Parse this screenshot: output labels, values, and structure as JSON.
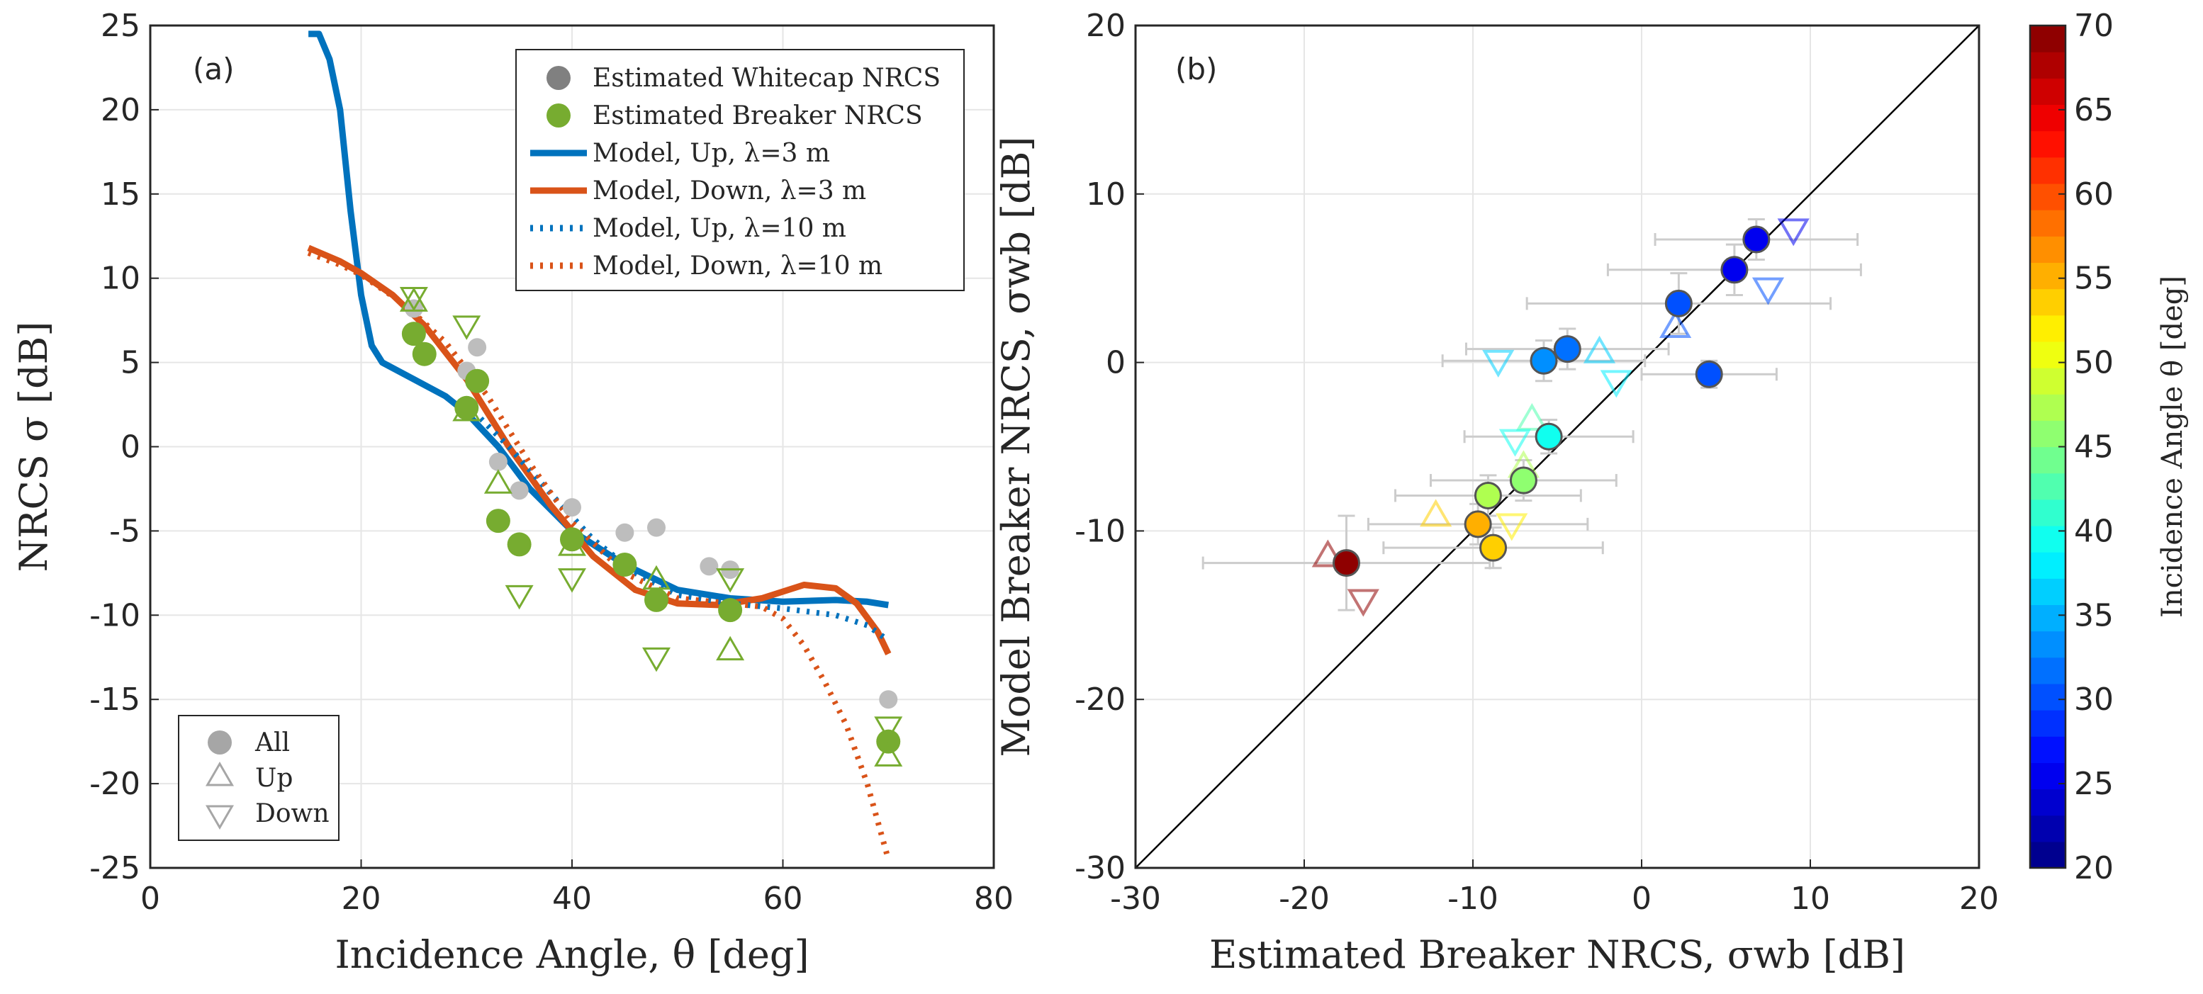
{
  "chart_data": [
    {
      "type": "scatter",
      "panel": "(a)",
      "xlabel": "Incidence Angle, θ [deg]",
      "ylabel": "NRCS σ [dB]",
      "xlim": [
        0,
        80
      ],
      "ylim": [
        -25,
        25
      ],
      "xticks": [
        0,
        20,
        40,
        60,
        80
      ],
      "yticks": [
        25,
        20,
        15,
        10,
        5,
        0,
        -5,
        -10,
        -15,
        -20,
        -25
      ],
      "grid": true,
      "legend_top": {
        "placement": "top-right",
        "entries": [
          {
            "label": "Estimated Whitecap NRCS",
            "style": "gray-dot"
          },
          {
            "label": "Estimated Breaker NRCS",
            "style": "green-dot"
          },
          {
            "label": "Model, Up, λ=3 m",
            "style": "blue-solid"
          },
          {
            "label": "Model, Down, λ=3 m",
            "style": "orange-solid"
          },
          {
            "label": "Model, Up, λ=10 m",
            "style": "blue-dotted"
          },
          {
            "label": "Model, Down, λ=10 m",
            "style": "orange-dotted"
          }
        ]
      },
      "legend_bottom": {
        "placement": "bottom-left",
        "entries": [
          {
            "label": "All",
            "style": "circle"
          },
          {
            "label": "Up",
            "style": "triangle-up"
          },
          {
            "label": "Down",
            "style": "triangle-down"
          }
        ]
      },
      "colors": {
        "blue": "#0072bd",
        "orange": "#d95319",
        "green": "#77ac30",
        "gray": "#bdbdbd"
      },
      "series": [
        {
          "name": "Model, Up, λ=3 m",
          "kind": "line",
          "style": "solid",
          "color": "#0072bd",
          "x": [
            15,
            16,
            17,
            18,
            19,
            20,
            21,
            22,
            25,
            28,
            30,
            33,
            36,
            40,
            45,
            50,
            55,
            60,
            65,
            68,
            70
          ],
          "y": [
            24.5,
            24.5,
            23,
            20,
            14,
            9,
            6,
            5,
            4,
            3,
            2,
            0,
            -2.5,
            -5,
            -7,
            -8.5,
            -9,
            -9.2,
            -9.1,
            -9.2,
            -9.4
          ]
        },
        {
          "name": "Model, Down, λ=3 m",
          "kind": "line",
          "style": "solid",
          "color": "#d95319",
          "x": [
            15,
            18,
            20,
            23,
            26,
            30,
            34,
            38,
            42,
            46,
            50,
            54,
            58,
            62,
            65,
            67,
            69,
            70
          ],
          "y": [
            11.8,
            11,
            10.3,
            9,
            7.2,
            4,
            0,
            -3.5,
            -6.5,
            -8.5,
            -9.3,
            -9.4,
            -9.0,
            -8.2,
            -8.4,
            -9.3,
            -11,
            -12.3
          ]
        },
        {
          "name": "Model, Up, λ=10 m",
          "kind": "line",
          "style": "dotted",
          "color": "#0072bd",
          "x": [
            30,
            34,
            38,
            42,
            46,
            50,
            55,
            60,
            65,
            68,
            70
          ],
          "y": [
            2.5,
            0,
            -2.8,
            -5.5,
            -7.5,
            -8.8,
            -9.3,
            -9.6,
            -10,
            -10.6,
            -11.5
          ]
        },
        {
          "name": "Model, Down, λ=10 m",
          "kind": "line",
          "style": "dotted",
          "color": "#d95319",
          "x": [
            15,
            18,
            20,
            24,
            28,
            32,
            36,
            40,
            45,
            50,
            55,
            58,
            60,
            62,
            64,
            66,
            68,
            70
          ],
          "y": [
            11.5,
            10.8,
            10.2,
            8.5,
            6.2,
            3,
            -1,
            -4.5,
            -7.5,
            -9,
            -9.3,
            -9.5,
            -10.2,
            -11.8,
            -14,
            -16.5,
            -20,
            -24.5
          ]
        },
        {
          "name": "Estimated Whitecap NRCS",
          "kind": "points",
          "marker": "circle",
          "color": "#bdbdbd",
          "x": [
            25,
            30,
            31,
            33,
            35,
            40,
            45,
            48,
            53,
            55,
            70
          ],
          "y": [
            8.2,
            4.5,
            5.9,
            -0.9,
            -2.6,
            -3.6,
            -5.1,
            -4.8,
            -7.1,
            -7.3,
            -15
          ]
        },
        {
          "name": "Estimated Breaker NRCS",
          "kind": "points",
          "marker": "circle",
          "color": "#77ac30",
          "x": [
            25,
            26,
            30,
            31,
            33,
            35,
            40,
            45,
            48,
            55,
            70
          ],
          "y": [
            6.7,
            5.5,
            2.3,
            3.9,
            -4.4,
            -5.8,
            -5.5,
            -7,
            -9.1,
            -9.7,
            -17.5
          ]
        },
        {
          "name": "Breaker Up",
          "kind": "points",
          "marker": "triangle-up",
          "color": "#77ac30",
          "x": [
            25,
            30,
            33,
            40,
            48,
            55,
            70
          ],
          "y": [
            8.5,
            2.0,
            -2.3,
            -6.0,
            -8.0,
            -12.2,
            -18.5
          ]
        },
        {
          "name": "Breaker Down",
          "kind": "points",
          "marker": "triangle-down",
          "color": "#77ac30",
          "x": [
            25,
            30,
            35,
            40,
            48,
            55,
            70
          ],
          "y": [
            9.0,
            7.3,
            -8.7,
            -7.7,
            -12.4,
            -7.7,
            -16.5
          ]
        }
      ]
    },
    {
      "type": "scatter",
      "panel": "(b)",
      "xlabel": "Estimated Breaker NRCS, σwb [dB]",
      "ylabel": "Model Breaker NRCS, σwb [dB]",
      "xlim": [
        -30,
        20
      ],
      "ylim": [
        -30,
        20
      ],
      "xticks": [
        -30,
        -20,
        -10,
        0,
        10,
        20
      ],
      "yticks": [
        20,
        10,
        0,
        -10,
        -20,
        -30
      ],
      "grid": true,
      "identity_line": true,
      "colorbar": {
        "label": "Incidence Angle θ [deg]",
        "range": [
          20,
          70
        ],
        "ticks": [
          70,
          65,
          60,
          55,
          50,
          45,
          40,
          35,
          30,
          25,
          20
        ],
        "colormap": "jet"
      },
      "series": [
        {
          "name": "All",
          "marker": "circle",
          "points": [
            {
              "x": 6.8,
              "y": 7.3,
              "angle": 25,
              "xerr": 6,
              "yerr": 1.2
            },
            {
              "x": 5.5,
              "y": 5.5,
              "angle": 26,
              "xerr": 7.5,
              "yerr": 1.5
            },
            {
              "x": 2.2,
              "y": 3.5,
              "angle": 30,
              "xerr": 9,
              "yerr": 1.8
            },
            {
              "x": -4.4,
              "y": 0.8,
              "angle": 31,
              "xerr": 6,
              "yerr": 1.2
            },
            {
              "x": -5.8,
              "y": 0.1,
              "angle": 33,
              "xerr": 6,
              "yerr": 1.2
            },
            {
              "x": 4.0,
              "y": -0.7,
              "angle": 30,
              "xerr": 4,
              "yerr": 0.8
            },
            {
              "x": -5.5,
              "y": -4.4,
              "angle": 40,
              "xerr": 5,
              "yerr": 1
            },
            {
              "x": -7.0,
              "y": -7.0,
              "angle": 45,
              "xerr": 5.5,
              "yerr": 1.2
            },
            {
              "x": -9.1,
              "y": -7.9,
              "angle": 48,
              "xerr": 5.5,
              "yerr": 1.2
            },
            {
              "x": -9.7,
              "y": -9.6,
              "angle": 55,
              "xerr": 6.5,
              "yerr": 1.2
            },
            {
              "x": -8.8,
              "y": -11.0,
              "angle": 53,
              "xerr": 6.5,
              "yerr": 1.2
            },
            {
              "x": -17.5,
              "y": -11.9,
              "angle": 70,
              "xerr": 8.5,
              "yerr": 2.8
            }
          ]
        },
        {
          "name": "Up",
          "marker": "triangle-up",
          "points": [
            {
              "x": 2.0,
              "y": 2.0,
              "angle": 30
            },
            {
              "x": -2.5,
              "y": 0.5,
              "angle": 36
            },
            {
              "x": -6.5,
              "y": -3.5,
              "angle": 42
            },
            {
              "x": -7.0,
              "y": -6.3,
              "angle": 48
            },
            {
              "x": -12.2,
              "y": -9.2,
              "angle": 53
            },
            {
              "x": -18.6,
              "y": -11.6,
              "angle": 70
            }
          ]
        },
        {
          "name": "Down",
          "marker": "triangle-down",
          "points": [
            {
              "x": 9.0,
              "y": 8.0,
              "angle": 25
            },
            {
              "x": 7.5,
              "y": 4.5,
              "angle": 30
            },
            {
              "x": -8.5,
              "y": 0.2,
              "angle": 36
            },
            {
              "x": -1.5,
              "y": -1.0,
              "angle": 38
            },
            {
              "x": -7.5,
              "y": -4.5,
              "angle": 40
            },
            {
              "x": -7.7,
              "y": -9.5,
              "angle": 52
            },
            {
              "x": -16.5,
              "y": -14.0,
              "angle": 70
            }
          ]
        }
      ]
    }
  ]
}
